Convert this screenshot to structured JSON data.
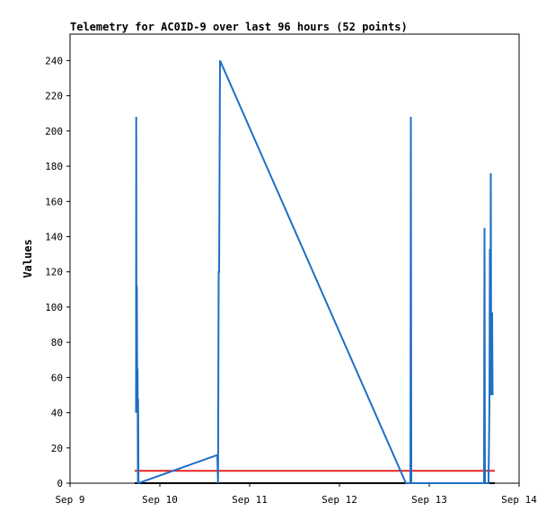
{
  "chart_data": {
    "type": "line",
    "title": "Telemetry for AC0ID-9 over last 96 hours (52 points)",
    "y_label": "Values",
    "xlim": [
      9,
      14
    ],
    "xticks": [
      {
        "value": 9,
        "label": "Sep 9"
      },
      {
        "value": 10,
        "label": "Sep 10"
      },
      {
        "value": 11,
        "label": "Sep 11"
      },
      {
        "value": 12,
        "label": "Sep 12"
      },
      {
        "value": 13,
        "label": "Sep 13"
      },
      {
        "value": 14,
        "label": "Sep 14"
      }
    ],
    "ylim": [
      0,
      255
    ],
    "yticks": [
      0,
      20,
      40,
      60,
      80,
      100,
      120,
      140,
      160,
      180,
      200,
      220,
      240
    ],
    "series": [
      {
        "color": "#000000",
        "x": [
          9.72,
          13.73
        ],
        "values": [
          0,
          0
        ]
      },
      {
        "color": "#e8231f",
        "x": [
          9.72,
          13.73
        ],
        "values": [
          7,
          7
        ]
      },
      {
        "color": "#1f6fc4",
        "x": [
          9.735,
          9.737,
          9.74,
          9.744,
          9.748,
          9.752,
          9.756,
          9.758,
          9.762,
          10.64,
          10.648,
          10.655,
          10.66,
          10.67,
          12.74,
          12.79,
          12.795,
          12.8,
          13.61,
          13.612,
          13.615,
          13.62,
          13.66,
          13.67,
          13.675,
          13.68,
          13.685,
          13.69,
          13.7,
          13.705
        ],
        "values": [
          40,
          208,
          40,
          112,
          45,
          65,
          0,
          48,
          0,
          16,
          0,
          120,
          120,
          240,
          0,
          0,
          208,
          0,
          0,
          72,
          145,
          0,
          0,
          45,
          133,
          50,
          176,
          50,
          97,
          50
        ]
      }
    ]
  }
}
